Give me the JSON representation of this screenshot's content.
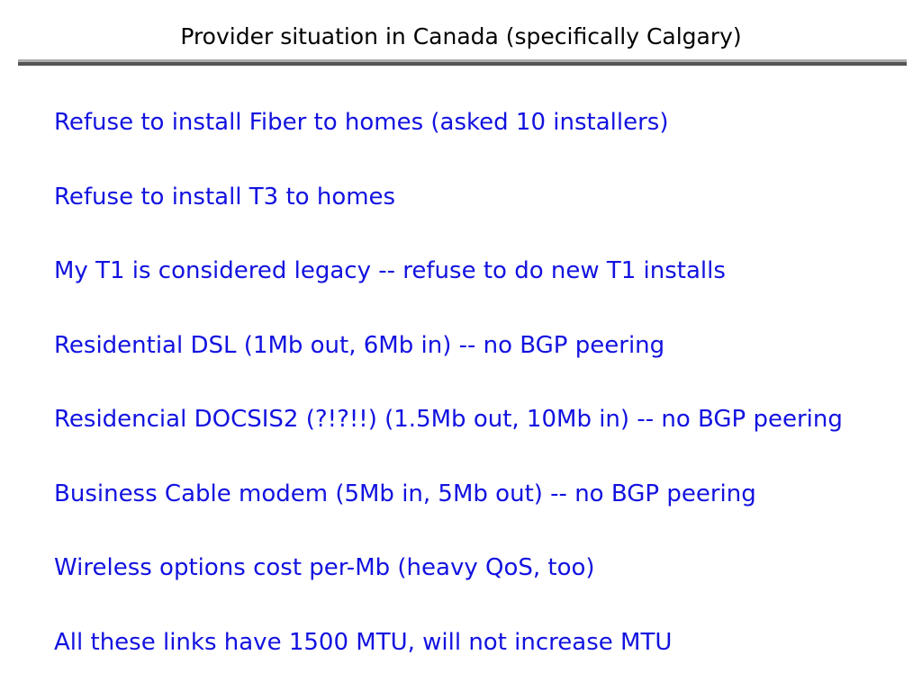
{
  "slide": {
    "title": "Provider situation in Canada (specifically Calgary)",
    "bullets": [
      "Refuse to install Fiber to homes (asked 10 installers)",
      "Refuse to install T3 to homes",
      "My T1 is considered legacy -- refuse to do new T1 installs",
      "Residential DSL (1Mb out, 6Mb in) -- no BGP peering",
      "Residencial DOCSIS2 (?!?!!) (1.5Mb out, 10Mb in) -- no BGP peering",
      "Business Cable modem (5Mb in, 5Mb out) -- no BGP peering",
      "Wireless options cost per-Mb (heavy QoS, too)",
      "All these links have 1500 MTU, will not increase MTU"
    ]
  },
  "colors": {
    "background": "#ffffff",
    "title_text": "#000000",
    "body_text": "#1212e0",
    "divider_top": "#ababab",
    "divider_bottom": "#555555"
  }
}
